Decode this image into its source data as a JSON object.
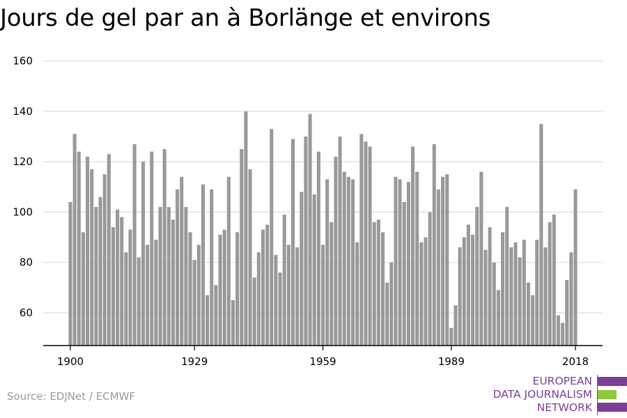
{
  "chart_data": {
    "type": "bar",
    "title": "Jours de gel par an à Borlänge et environs",
    "xlabel": "",
    "ylabel": "",
    "ylim": [
      47,
      160
    ],
    "yticks": [
      60,
      80,
      100,
      120,
      140,
      160
    ],
    "xticks": [
      1900,
      1929,
      1959,
      1989,
      2018
    ],
    "grid": true,
    "bar_color": "#999999",
    "x": [
      1900,
      1901,
      1902,
      1903,
      1904,
      1905,
      1906,
      1907,
      1908,
      1909,
      1910,
      1911,
      1912,
      1913,
      1914,
      1915,
      1916,
      1917,
      1918,
      1919,
      1920,
      1921,
      1922,
      1923,
      1924,
      1925,
      1926,
      1927,
      1928,
      1929,
      1930,
      1931,
      1932,
      1933,
      1934,
      1935,
      1936,
      1937,
      1938,
      1939,
      1940,
      1941,
      1942,
      1943,
      1944,
      1945,
      1946,
      1947,
      1948,
      1949,
      1950,
      1951,
      1952,
      1953,
      1954,
      1955,
      1956,
      1957,
      1958,
      1959,
      1960,
      1961,
      1962,
      1963,
      1964,
      1965,
      1966,
      1967,
      1968,
      1969,
      1970,
      1971,
      1972,
      1973,
      1974,
      1975,
      1976,
      1977,
      1978,
      1979,
      1980,
      1981,
      1982,
      1983,
      1984,
      1985,
      1986,
      1987,
      1988,
      1989,
      1990,
      1991,
      1992,
      1993,
      1994,
      1995,
      1996,
      1997,
      1998,
      1999,
      2000,
      2001,
      2002,
      2003,
      2004,
      2005,
      2006,
      2007,
      2008,
      2009,
      2010,
      2011,
      2012,
      2013,
      2014,
      2015,
      2016,
      2017,
      2018
    ],
    "values": [
      104,
      131,
      124,
      92,
      122,
      117,
      102,
      106,
      115,
      123,
      94,
      101,
      98,
      84,
      93,
      127,
      82,
      120,
      87,
      124,
      89,
      102,
      125,
      102,
      97,
      109,
      114,
      102,
      92,
      81,
      87,
      111,
      67,
      109,
      71,
      91,
      93,
      114,
      65,
      92,
      125,
      140,
      117,
      74,
      84,
      93,
      95,
      133,
      83,
      76,
      99,
      87,
      129,
      86,
      108,
      130,
      139,
      107,
      124,
      87,
      113,
      96,
      122,
      130,
      116,
      114,
      113,
      88,
      131,
      128,
      126,
      96,
      97,
      92,
      72,
      80,
      114,
      113,
      104,
      112,
      126,
      116,
      88,
      90,
      100,
      127,
      109,
      114,
      115,
      54,
      63,
      86,
      90,
      95,
      91,
      102,
      116,
      85,
      94,
      80,
      69,
      92,
      102,
      86,
      88,
      82,
      89,
      72,
      67,
      89,
      135,
      86,
      96,
      99,
      59,
      56,
      73,
      84,
      109
    ]
  },
  "source": "Source: EDJNet / ECMWF",
  "logo": {
    "line1": "EUROPEAN",
    "line2": "DATA JOURNALISM",
    "line3": "NETWORK",
    "purple": "#7b3f98",
    "green": "#8dc63f"
  }
}
